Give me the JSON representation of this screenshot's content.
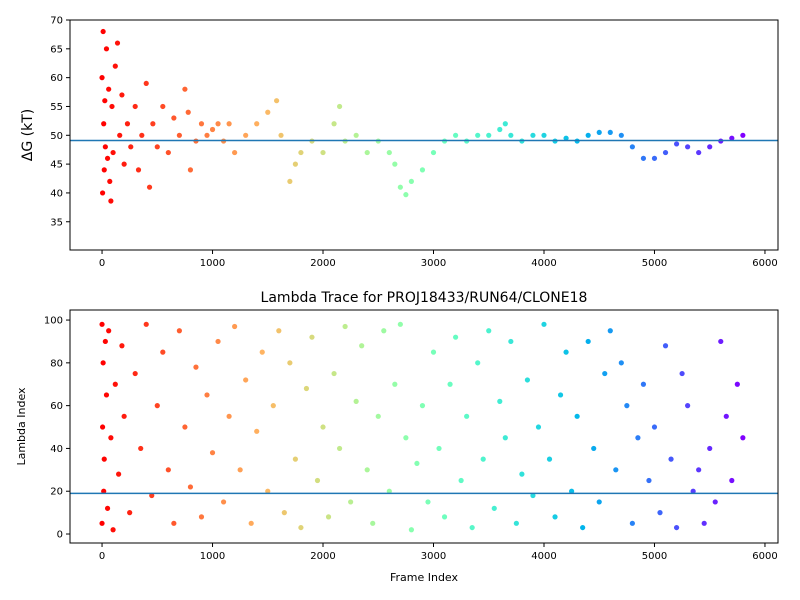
{
  "chart_data": [
    {
      "type": "scatter",
      "ylabel": "ΔG (kT)",
      "colormap": "rainbow_r",
      "hline": 49.1,
      "hline_color": "#1f77b4",
      "xlim": [
        -290,
        6118
      ],
      "xticks": [
        0,
        1000,
        2000,
        3000,
        4000,
        5000,
        6000
      ],
      "ylim": [
        30.1,
        70
      ],
      "yticks": [
        35,
        40,
        45,
        50,
        55,
        60,
        65,
        70
      ],
      "x": [
        0,
        5,
        10,
        15,
        20,
        25,
        30,
        40,
        50,
        60,
        70,
        80,
        90,
        100,
        120,
        140,
        160,
        180,
        200,
        230,
        260,
        300,
        330,
        360,
        400,
        430,
        460,
        500,
        550,
        600,
        650,
        700,
        750,
        780,
        800,
        850,
        900,
        950,
        1000,
        1050,
        1100,
        1150,
        1200,
        1300,
        1400,
        1500,
        1580,
        1620,
        1700,
        1750,
        1800,
        1900,
        2000,
        2100,
        2150,
        2200,
        2300,
        2400,
        2500,
        2600,
        2650,
        2700,
        2750,
        2800,
        2900,
        3000,
        3100,
        3200,
        3300,
        3400,
        3500,
        3600,
        3650,
        3700,
        3800,
        3900,
        4000,
        4100,
        4200,
        4300,
        4400,
        4500,
        4600,
        4700,
        4800,
        4900,
        5000,
        5100,
        5200,
        5300,
        5400,
        5500,
        5600,
        5700,
        5800
      ],
      "values": [
        60,
        40,
        68,
        52,
        44,
        56,
        48,
        65,
        46,
        58,
        42,
        38.6,
        55,
        47,
        62,
        66,
        50,
        57,
        45,
        52,
        48,
        55,
        44,
        50,
        59,
        41,
        52,
        48,
        55,
        47,
        53,
        50,
        58,
        54,
        44,
        49,
        52,
        50,
        51,
        52,
        49,
        52,
        47,
        50,
        52,
        54,
        56,
        50,
        42,
        45,
        47,
        49,
        47,
        52,
        55,
        49,
        50,
        47,
        49,
        47,
        45,
        41,
        39.7,
        42,
        44,
        47,
        49,
        50,
        49,
        50,
        50,
        51,
        52,
        50,
        49,
        50,
        50,
        49,
        49.5,
        49,
        50,
        50.5,
        50.5,
        50,
        48,
        46,
        46,
        47,
        48.5,
        48,
        47,
        48,
        49,
        49.5,
        50
      ]
    },
    {
      "type": "scatter",
      "title": "Lambda Trace for PROJ18433/RUN64/CLONE18",
      "xlabel": "Frame Index",
      "ylabel": "Lambda Index",
      "colormap": "rainbow_r",
      "hline": 19,
      "hline_color": "#1f77b4",
      "xlim": [
        -290,
        6118
      ],
      "xticks": [
        0,
        1000,
        2000,
        3000,
        4000,
        5000,
        6000
      ],
      "ylim": [
        -4.2,
        104.7
      ],
      "yticks": [
        0,
        20,
        40,
        60,
        80,
        100
      ],
      "x": [
        0,
        0,
        5,
        10,
        15,
        20,
        30,
        40,
        50,
        60,
        80,
        100,
        120,
        150,
        180,
        200,
        250,
        300,
        350,
        400,
        450,
        500,
        550,
        600,
        650,
        700,
        750,
        800,
        850,
        900,
        950,
        1000,
        1050,
        1100,
        1150,
        1200,
        1250,
        1300,
        1350,
        1400,
        1450,
        1500,
        1550,
        1600,
        1650,
        1700,
        1750,
        1800,
        1850,
        1900,
        1950,
        2000,
        2050,
        2100,
        2150,
        2200,
        2250,
        2300,
        2350,
        2400,
        2450,
        2500,
        2550,
        2600,
        2650,
        2700,
        2750,
        2800,
        2850,
        2900,
        2950,
        3000,
        3050,
        3100,
        3150,
        3200,
        3250,
        3300,
        3350,
        3400,
        3450,
        3500,
        3550,
        3600,
        3650,
        3700,
        3750,
        3800,
        3850,
        3900,
        3950,
        4000,
        4050,
        4100,
        4150,
        4200,
        4250,
        4300,
        4350,
        4400,
        4450,
        4500,
        4550,
        4600,
        4650,
        4700,
        4750,
        4800,
        4850,
        4900,
        4950,
        5000,
        5050,
        5100,
        5150,
        5200,
        5250,
        5300,
        5350,
        5400,
        5450,
        5500,
        5550,
        5600,
        5650,
        5700,
        5750,
        5800
      ],
      "values": [
        98,
        5,
        50,
        80,
        20,
        35,
        90,
        65,
        12,
        95,
        45,
        2,
        70,
        28,
        88,
        55,
        10,
        75,
        40,
        98,
        18,
        60,
        85,
        30,
        5,
        95,
        50,
        22,
        78,
        8,
        65,
        38,
        90,
        15,
        55,
        97,
        30,
        72,
        5,
        48,
        85,
        20,
        60,
        95,
        10,
        80,
        35,
        3,
        68,
        92,
        25,
        50,
        8,
        75,
        40,
        97,
        15,
        62,
        88,
        30,
        5,
        55,
        95,
        20,
        70,
        98,
        45,
        2,
        33,
        60,
        15,
        85,
        40,
        8,
        70,
        92,
        25,
        55,
        3,
        80,
        35,
        95,
        12,
        62,
        45,
        90,
        5,
        28,
        72,
        18,
        50,
        98,
        35,
        8,
        65,
        85,
        20,
        55,
        3,
        90,
        40,
        15,
        75,
        95,
        30,
        80,
        60,
        5,
        45,
        70,
        25,
        50,
        10,
        88,
        35,
        3,
        75,
        60,
        20,
        30,
        5,
        40,
        15,
        90,
        55,
        25,
        70,
        45
      ]
    }
  ]
}
